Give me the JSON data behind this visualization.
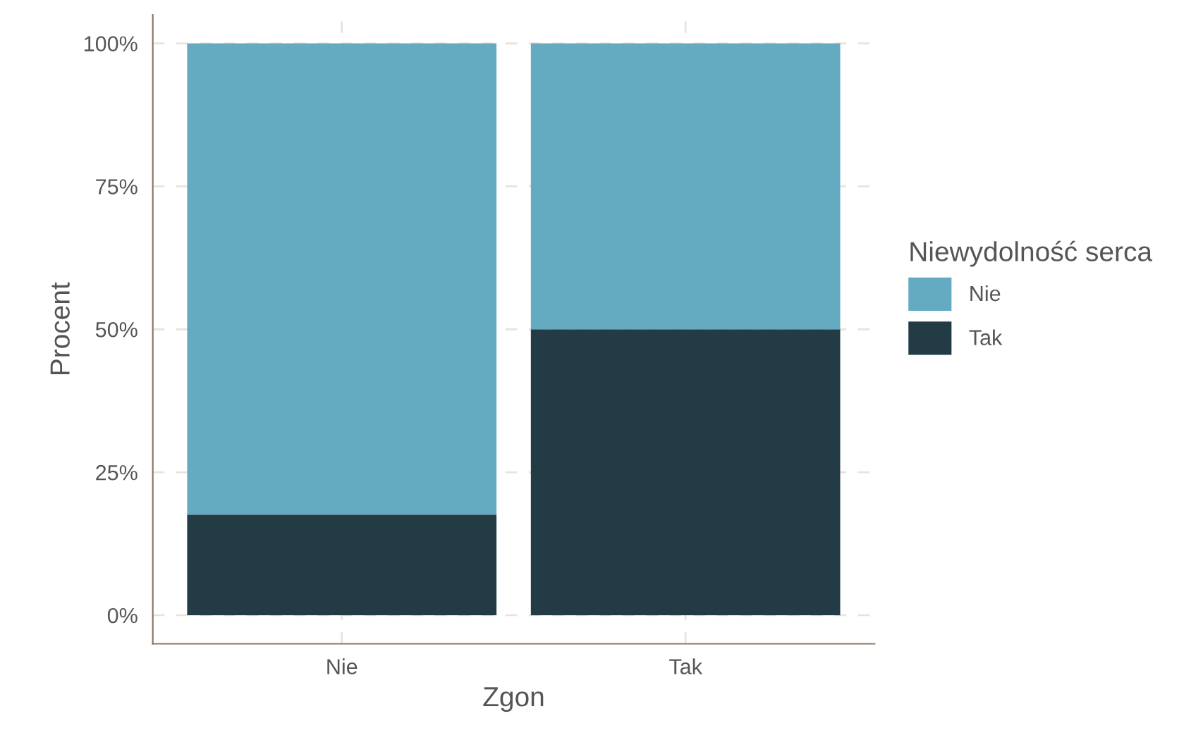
{
  "chart_data": {
    "type": "bar",
    "stacked": true,
    "xlabel": "Zgon",
    "ylabel": "Procent",
    "legend_title": "Niewydolność serca",
    "categories": [
      "Nie",
      "Tak"
    ],
    "series": [
      {
        "name": "Tak",
        "color": "#233b44",
        "values": [
          17.6,
          50
        ]
      },
      {
        "name": "Nie",
        "color": "#64abc2",
        "values": [
          82.4,
          50
        ]
      }
    ],
    "ylim": [
      -5,
      105
    ],
    "yticks": [
      {
        "value": 0,
        "label": "0%"
      },
      {
        "value": 25,
        "label": "25%"
      },
      {
        "value": 50,
        "label": "50%"
      },
      {
        "value": 75,
        "label": "75%"
      },
      {
        "value": 100,
        "label": "100%"
      }
    ],
    "grid": true,
    "legend": "right"
  }
}
